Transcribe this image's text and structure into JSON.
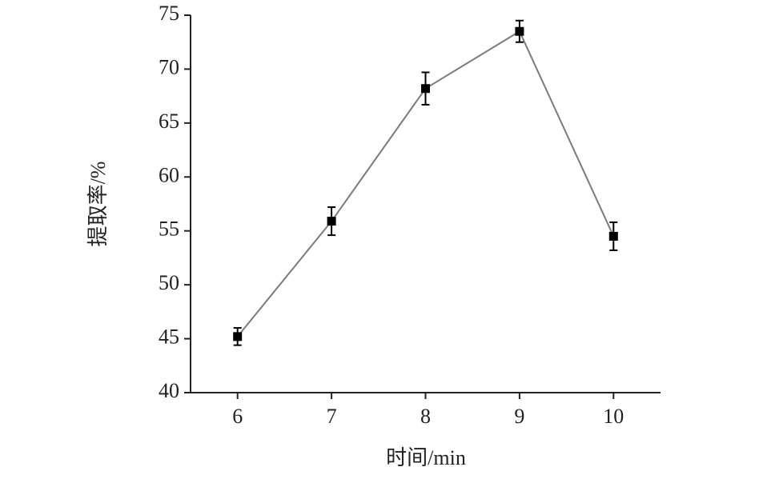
{
  "chart_data": {
    "type": "line",
    "x_label": "时间/min",
    "y_label": "提取率/%",
    "x": [
      6,
      7,
      8,
      9,
      10
    ],
    "series": [
      {
        "color": "#000000",
        "line_color": "#7a7a7a",
        "values": [
          45.2,
          55.9,
          68.2,
          73.5,
          54.5
        ],
        "errors": [
          0.8,
          1.3,
          1.5,
          1.0,
          1.3
        ]
      }
    ],
    "xlim": [
      5.5,
      10.5
    ],
    "xticks": [
      6,
      7,
      8,
      9,
      10
    ],
    "ylim": [
      40,
      75
    ],
    "yticks": [
      40,
      45,
      50,
      55,
      60,
      65,
      70,
      75
    ]
  }
}
